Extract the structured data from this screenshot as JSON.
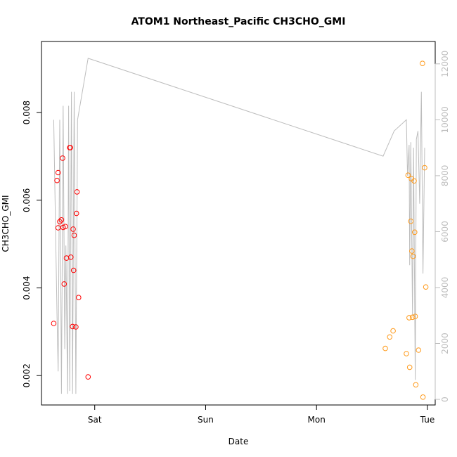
{
  "chart_data": {
    "type": "scatter",
    "title": "ATOM1 Northeast_Pacific CH3CHO_GMI",
    "xlabel": "Date",
    "ylabel": "CH3CHO_GMI",
    "x_ticks": [
      {
        "label": "Sat",
        "value": 0
      },
      {
        "label": "Sun",
        "value": 1
      },
      {
        "label": "Mon",
        "value": 2
      },
      {
        "label": "Tue",
        "value": 3
      }
    ],
    "xlim": [
      -0.48,
      3.07
    ],
    "ylim": [
      0.00133,
      0.00962
    ],
    "y_ticks": [
      0.002,
      0.004,
      0.006,
      0.008
    ],
    "y_tick_labels": [
      "0.002",
      "0.004",
      "0.006",
      "0.008"
    ],
    "y2lim": [
      -200,
      12800
    ],
    "y2_ticks": [
      0,
      2000,
      4000,
      6000,
      8000,
      10000,
      12000
    ],
    "y2_tick_labels": [
      "0",
      "2000",
      "4000",
      "6000",
      "8000",
      "10000",
      "12000"
    ],
    "grid": false,
    "colors": {
      "series1": "#ff0000",
      "series2": "#ff9a1a",
      "altitude_line": "#bdbdbd",
      "axes": "#000000"
    },
    "series": [
      {
        "type": "scatter",
        "color": "#ff0000",
        "points": [
          {
            "x": -0.37,
            "y": 0.00319
          },
          {
            "x": -0.34,
            "y": 0.00645
          },
          {
            "x": -0.33,
            "y": 0.00663
          },
          {
            "x": -0.33,
            "y": 0.00537
          },
          {
            "x": -0.315,
            "y": 0.00551
          },
          {
            "x": -0.3,
            "y": 0.00555
          },
          {
            "x": -0.29,
            "y": 0.00696
          },
          {
            "x": -0.285,
            "y": 0.00538
          },
          {
            "x": -0.275,
            "y": 0.00409
          },
          {
            "x": -0.265,
            "y": 0.0054
          },
          {
            "x": -0.255,
            "y": 0.00468
          },
          {
            "x": -0.225,
            "y": 0.0072
          },
          {
            "x": -0.22,
            "y": 0.0072
          },
          {
            "x": -0.215,
            "y": 0.0047
          },
          {
            "x": -0.2,
            "y": 0.00312
          },
          {
            "x": -0.195,
            "y": 0.00534
          },
          {
            "x": -0.19,
            "y": 0.0044
          },
          {
            "x": -0.185,
            "y": 0.0052
          },
          {
            "x": -0.17,
            "y": 0.00311
          },
          {
            "x": -0.165,
            "y": 0.0057
          },
          {
            "x": -0.16,
            "y": 0.00619
          },
          {
            "x": -0.145,
            "y": 0.00378
          },
          {
            "x": -0.06,
            "y": 0.00197
          }
        ]
      },
      {
        "type": "scatter",
        "color": "#ff9a1a",
        "points": [
          {
            "x": 2.62,
            "y": 0.00262
          },
          {
            "x": 2.66,
            "y": 0.00288
          },
          {
            "x": 2.69,
            "y": 0.00302
          },
          {
            "x": 2.81,
            "y": 0.0025
          },
          {
            "x": 2.825,
            "y": 0.00657
          },
          {
            "x": 2.835,
            "y": 0.00332
          },
          {
            "x": 2.84,
            "y": 0.00219
          },
          {
            "x": 2.85,
            "y": 0.00552
          },
          {
            "x": 2.855,
            "y": 0.00649
          },
          {
            "x": 2.86,
            "y": 0.00484
          },
          {
            "x": 2.865,
            "y": 0.00333
          },
          {
            "x": 2.87,
            "y": 0.00472
          },
          {
            "x": 2.88,
            "y": 0.00644
          },
          {
            "x": 2.885,
            "y": 0.00527
          },
          {
            "x": 2.89,
            "y": 0.00335
          },
          {
            "x": 2.895,
            "y": 0.00179
          },
          {
            "x": 2.92,
            "y": 0.00258
          },
          {
            "x": 2.955,
            "y": 0.00912
          },
          {
            "x": 2.96,
            "y": 0.00151
          },
          {
            "x": 2.975,
            "y": 0.00674
          },
          {
            "x": 2.985,
            "y": 0.00402
          }
        ]
      },
      {
        "type": "line",
        "axis": "right",
        "color": "#bdbdbd",
        "points": [
          {
            "x": -0.37,
            "y": 10000
          },
          {
            "x": -0.34,
            "y": 3000
          },
          {
            "x": -0.33,
            "y": 1000
          },
          {
            "x": -0.315,
            "y": 10000
          },
          {
            "x": -0.3,
            "y": 200
          },
          {
            "x": -0.285,
            "y": 10500
          },
          {
            "x": -0.27,
            "y": 1800
          },
          {
            "x": -0.26,
            "y": 5500
          },
          {
            "x": -0.245,
            "y": 200
          },
          {
            "x": -0.235,
            "y": 10500
          },
          {
            "x": -0.225,
            "y": 300
          },
          {
            "x": -0.21,
            "y": 11000
          },
          {
            "x": -0.2,
            "y": 200
          },
          {
            "x": -0.185,
            "y": 11000
          },
          {
            "x": -0.17,
            "y": 200
          },
          {
            "x": -0.155,
            "y": 10000
          },
          {
            "x": -0.06,
            "y": 12200
          },
          {
            "x": 2.6,
            "y": 8700
          },
          {
            "x": 2.7,
            "y": 9600
          },
          {
            "x": 2.81,
            "y": 10000
          },
          {
            "x": 2.82,
            "y": 8000
          },
          {
            "x": 2.835,
            "y": 9100
          },
          {
            "x": 2.84,
            "y": 4800
          },
          {
            "x": 2.85,
            "y": 9200
          },
          {
            "x": 2.865,
            "y": 3000
          },
          {
            "x": 2.875,
            "y": 9000
          },
          {
            "x": 2.89,
            "y": 700
          },
          {
            "x": 2.9,
            "y": 9300
          },
          {
            "x": 2.915,
            "y": 9600
          },
          {
            "x": 2.93,
            "y": 7000
          },
          {
            "x": 2.945,
            "y": 11000
          },
          {
            "x": 2.96,
            "y": 4500
          },
          {
            "x": 2.975,
            "y": 9000
          }
        ]
      }
    ]
  }
}
